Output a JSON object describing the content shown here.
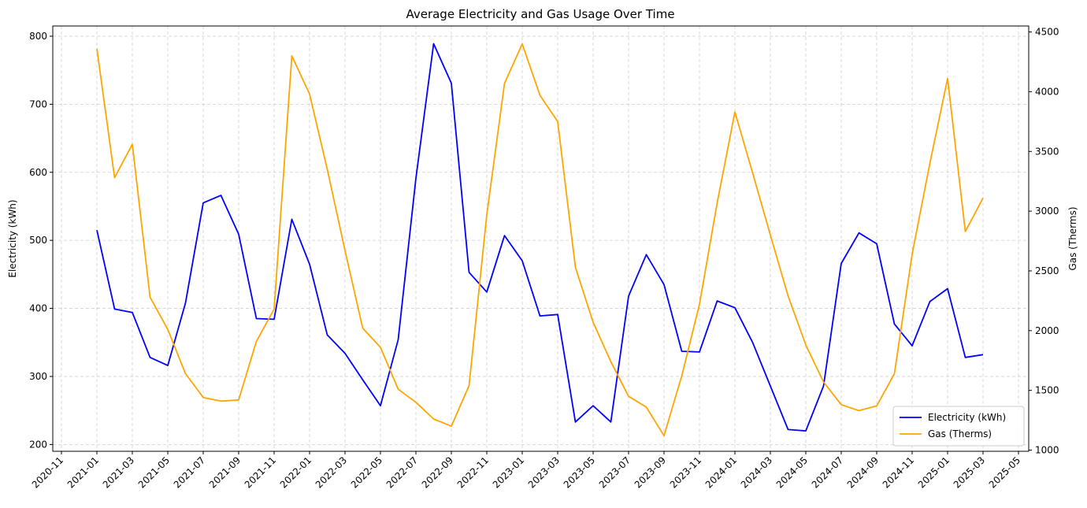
{
  "chart_data": {
    "type": "line",
    "title": "Average Electricity and Gas Usage Over Time",
    "xlabel": "",
    "ylabel_left": "Electricity (kWh)",
    "ylabel_right": "Gas (Therms)",
    "x_ticks": [
      "2020-11",
      "2021-01",
      "2021-03",
      "2021-05",
      "2021-07",
      "2021-09",
      "2021-11",
      "2022-01",
      "2022-03",
      "2022-05",
      "2022-07",
      "2022-09",
      "2022-11",
      "2023-01",
      "2023-03",
      "2023-05",
      "2023-07",
      "2023-09",
      "2023-11",
      "2024-01",
      "2024-03",
      "2024-05",
      "2024-07",
      "2024-09",
      "2024-11",
      "2025-01",
      "2025-03",
      "2025-05"
    ],
    "y_left_ticks": [
      200,
      300,
      400,
      500,
      600,
      700,
      800
    ],
    "y_right_ticks": [
      1000,
      1500,
      2000,
      2500,
      3000,
      3500,
      4000,
      4500
    ],
    "ylim_left": [
      190,
      815
    ],
    "ylim_right": [
      990,
      4550
    ],
    "grid": true,
    "legend_position": "lower-right",
    "x": [
      "2021-01",
      "2021-02",
      "2021-03",
      "2021-04",
      "2021-05",
      "2021-06",
      "2021-07",
      "2021-08",
      "2021-09",
      "2021-10",
      "2021-11",
      "2021-12",
      "2022-01",
      "2022-02",
      "2022-03",
      "2022-04",
      "2022-05",
      "2022-06",
      "2022-07",
      "2022-08",
      "2022-09",
      "2022-10",
      "2022-11",
      "2022-12",
      "2023-01",
      "2023-02",
      "2023-03",
      "2023-04",
      "2023-05",
      "2023-06",
      "2023-07",
      "2023-08",
      "2023-09",
      "2023-10",
      "2023-11",
      "2023-12",
      "2024-01",
      "2024-02",
      "2024-03",
      "2024-04",
      "2024-05",
      "2024-06",
      "2024-07",
      "2024-08",
      "2024-09",
      "2024-10",
      "2024-11",
      "2024-12",
      "2025-01",
      "2025-02",
      "2025-03"
    ],
    "series": [
      {
        "name": "Electricity (kWh)",
        "axis": "left",
        "color": "#0000ff",
        "values": [
          515,
          399,
          394,
          328,
          316,
          408,
          555,
          566,
          509,
          385,
          384,
          531,
          465,
          361,
          334,
          295,
          257,
          354,
          591,
          789,
          731,
          453,
          424,
          507,
          470,
          389,
          391,
          233,
          257,
          233,
          418,
          479,
          435,
          337,
          336,
          411,
          401,
          350,
          286,
          222,
          220,
          286,
          466,
          511,
          495,
          377,
          345,
          410,
          429,
          328,
          332
        ]
      },
      {
        "name": "Gas (Therms)",
        "axis": "right",
        "color": "#ffa500",
        "values": [
          4360,
          3280,
          3560,
          2280,
          2010,
          1640,
          1440,
          1410,
          1420,
          1910,
          2180,
          4300,
          3980,
          3350,
          2670,
          2020,
          1860,
          1510,
          1400,
          1260,
          1200,
          1540,
          2970,
          4070,
          4400,
          3970,
          3750,
          2530,
          2070,
          1740,
          1450,
          1360,
          1120,
          1620,
          2220,
          3070,
          3830,
          3320,
          2800,
          2290,
          1880,
          1570,
          1380,
          1330,
          1370,
          1640,
          2640,
          3400,
          4110,
          2830,
          3110
        ]
      }
    ]
  }
}
